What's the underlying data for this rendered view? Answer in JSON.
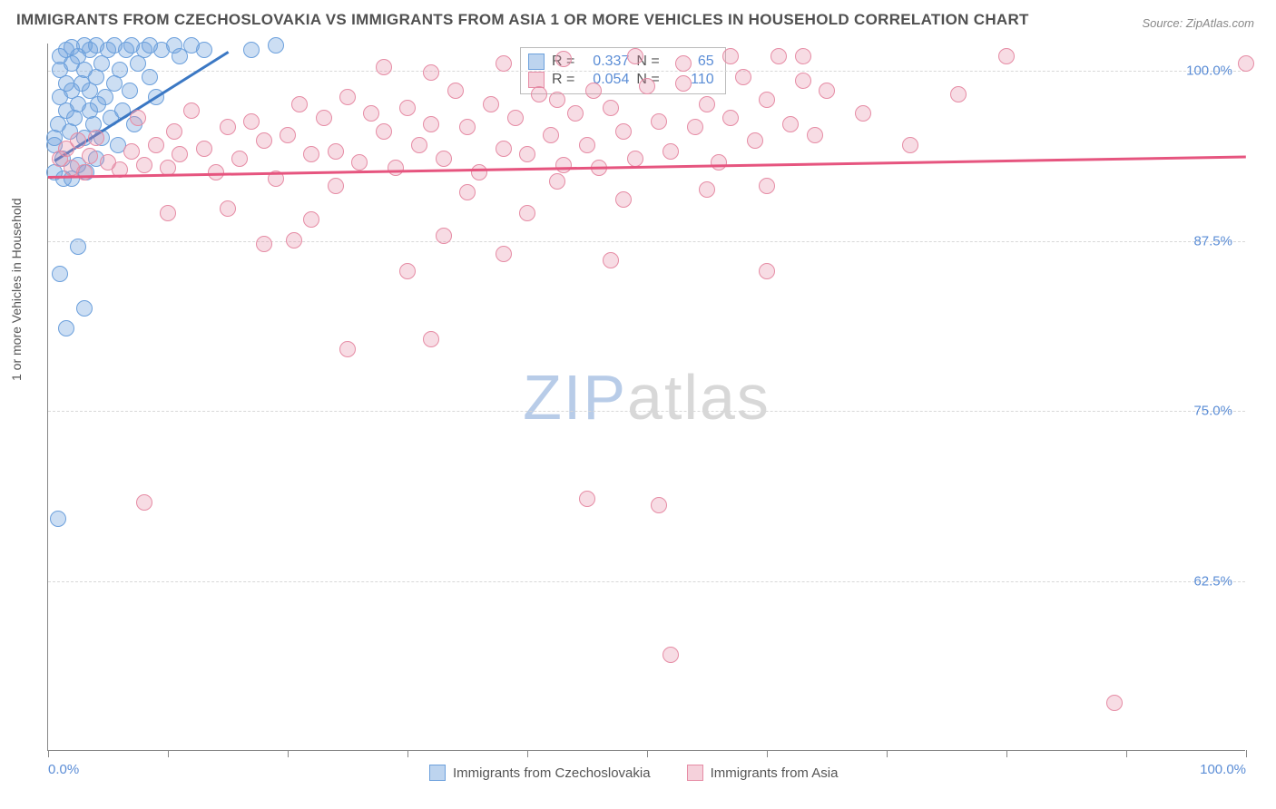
{
  "title": "IMMIGRANTS FROM CZECHOSLOVAKIA VS IMMIGRANTS FROM ASIA 1 OR MORE VEHICLES IN HOUSEHOLD CORRELATION CHART",
  "source": "Source: ZipAtlas.com",
  "y_axis_title": "1 or more Vehicles in Household",
  "watermark_a": "ZIP",
  "watermark_b": "atlas",
  "chart": {
    "type": "scatter",
    "background_color": "#ffffff",
    "grid_color": "#d8d8d8",
    "axis_color": "#888888",
    "xlim": [
      0,
      100
    ],
    "ylim": [
      50,
      102
    ],
    "y_ticks": [
      {
        "v": 62.5,
        "label": "62.5%"
      },
      {
        "v": 75.0,
        "label": "75.0%"
      },
      {
        "v": 87.5,
        "label": "87.5%"
      },
      {
        "v": 100.0,
        "label": "100.0%"
      }
    ],
    "x_ticks": [
      0,
      10,
      20,
      30,
      40,
      50,
      60,
      70,
      80,
      90,
      100
    ],
    "x_tick_labels": [
      {
        "v": 0,
        "label": "0.0%",
        "align": "left"
      },
      {
        "v": 100,
        "label": "100.0%",
        "align": "right"
      }
    ],
    "series": [
      {
        "name": "Immigrants from Czechoslovakia",
        "color_fill": "rgba(108,160,220,0.35)",
        "color_stroke": "#6ca0dc",
        "css": "pt-blue",
        "R": "0.337",
        "N": "65",
        "trend": {
          "x1": 0.5,
          "y1": 93.5,
          "x2": 15,
          "y2": 101.5,
          "color": "#3b78c4"
        },
        "points": [
          [
            0.5,
            92.5
          ],
          [
            0.5,
            94.5
          ],
          [
            0.5,
            95
          ],
          [
            0.8,
            96
          ],
          [
            1,
            98
          ],
          [
            1,
            100
          ],
          [
            1,
            101
          ],
          [
            1.2,
            93.5
          ],
          [
            1.3,
            92
          ],
          [
            1.5,
            97
          ],
          [
            1.5,
            99
          ],
          [
            1.5,
            101.5
          ],
          [
            1.8,
            95.5
          ],
          [
            2,
            92
          ],
          [
            2,
            98.5
          ],
          [
            2,
            100.5
          ],
          [
            2,
            101.7
          ],
          [
            2.2,
            96.5
          ],
          [
            2.5,
            93
          ],
          [
            2.5,
            97.5
          ],
          [
            2.5,
            101
          ],
          [
            2.8,
            99
          ],
          [
            3,
            95
          ],
          [
            3,
            100
          ],
          [
            3,
            101.8
          ],
          [
            3.2,
            92.5
          ],
          [
            3.5,
            97
          ],
          [
            3.5,
            98.5
          ],
          [
            3.5,
            101.5
          ],
          [
            3.8,
            96
          ],
          [
            4,
            93.5
          ],
          [
            4,
            99.5
          ],
          [
            4,
            101.8
          ],
          [
            4.2,
            97.5
          ],
          [
            4.5,
            95
          ],
          [
            4.5,
            100.5
          ],
          [
            4.8,
            98
          ],
          [
            5,
            101.5
          ],
          [
            5.2,
            96.5
          ],
          [
            5.5,
            99
          ],
          [
            5.5,
            101.8
          ],
          [
            5.8,
            94.5
          ],
          [
            6,
            100
          ],
          [
            6.2,
            97
          ],
          [
            6.5,
            101.5
          ],
          [
            6.8,
            98.5
          ],
          [
            7,
            101.8
          ],
          [
            7.2,
            96
          ],
          [
            7.5,
            100.5
          ],
          [
            8,
            101.5
          ],
          [
            8.5,
            99.5
          ],
          [
            8.5,
            101.8
          ],
          [
            9,
            98
          ],
          [
            9.5,
            101.5
          ],
          [
            10.5,
            101.8
          ],
          [
            11,
            101
          ],
          [
            12,
            101.8
          ],
          [
            13,
            101.5
          ],
          [
            0.8,
            67
          ],
          [
            2.5,
            87
          ],
          [
            1,
            85
          ],
          [
            3,
            82.5
          ],
          [
            1.5,
            81
          ],
          [
            17,
            101.5
          ],
          [
            19,
            101.8
          ]
        ]
      },
      {
        "name": "Immigrants from Asia",
        "color_fill": "rgba(230,140,165,0.30)",
        "color_stroke": "#e68ca5",
        "css": "pt-pink",
        "R": "0.054",
        "N": "110",
        "trend": {
          "x1": 0,
          "y1": 92.3,
          "x2": 100,
          "y2": 93.8,
          "color": "#e6557f"
        },
        "points": [
          [
            1,
            93.5
          ],
          [
            1.5,
            94.2
          ],
          [
            2,
            92.8
          ],
          [
            2.5,
            94.8
          ],
          [
            3,
            92.5
          ],
          [
            3.5,
            93.7
          ],
          [
            4,
            95
          ],
          [
            5,
            93.2
          ],
          [
            6,
            92.7
          ],
          [
            7,
            94
          ],
          [
            7.5,
            96.5
          ],
          [
            8,
            93
          ],
          [
            9,
            94.5
          ],
          [
            10,
            92.8
          ],
          [
            10.5,
            95.5
          ],
          [
            11,
            93.8
          ],
          [
            12,
            97
          ],
          [
            13,
            94.2
          ],
          [
            14,
            92.5
          ],
          [
            15,
            95.8
          ],
          [
            16,
            93.5
          ],
          [
            17,
            96.2
          ],
          [
            18,
            94.8
          ],
          [
            19,
            92
          ],
          [
            20,
            95.2
          ],
          [
            21,
            97.5
          ],
          [
            22,
            93.8
          ],
          [
            20.5,
            87.5
          ],
          [
            23,
            96.5
          ],
          [
            24,
            94
          ],
          [
            25,
            98
          ],
          [
            26,
            93.2
          ],
          [
            27,
            96.8
          ],
          [
            28,
            95.5
          ],
          [
            29,
            92.8
          ],
          [
            30,
            97.2
          ],
          [
            31,
            94.5
          ],
          [
            32,
            96
          ],
          [
            33,
            93.5
          ],
          [
            34,
            98.5
          ],
          [
            35,
            95.8
          ],
          [
            36,
            92.5
          ],
          [
            37,
            97.5
          ],
          [
            38,
            94.2
          ],
          [
            39,
            96.5
          ],
          [
            40,
            93.8
          ],
          [
            41,
            98.2
          ],
          [
            42,
            95.2
          ],
          [
            42.5,
            97.8
          ],
          [
            43,
            93
          ],
          [
            44,
            96.8
          ],
          [
            45,
            94.5
          ],
          [
            45.5,
            98.5
          ],
          [
            46,
            92.8
          ],
          [
            47,
            97.2
          ],
          [
            48,
            95.5
          ],
          [
            49,
            93.5
          ],
          [
            50,
            98.8
          ],
          [
            51,
            96.2
          ],
          [
            52,
            94
          ],
          [
            53,
            99
          ],
          [
            54,
            95.8
          ],
          [
            55,
            97.5
          ],
          [
            56,
            93.2
          ],
          [
            57,
            96.5
          ],
          [
            58,
            99.5
          ],
          [
            59,
            94.8
          ],
          [
            60,
            97.8
          ],
          [
            61,
            101
          ],
          [
            62,
            96
          ],
          [
            63,
            99.2
          ],
          [
            64,
            95.2
          ],
          [
            65,
            98.5
          ],
          [
            68,
            96.8
          ],
          [
            72,
            94.5
          ],
          [
            76,
            98.2
          ],
          [
            80,
            101
          ],
          [
            25,
            79.5
          ],
          [
            32,
            80.2
          ],
          [
            38,
            86.5
          ],
          [
            33,
            87.8
          ],
          [
            30,
            85.2
          ],
          [
            45,
            68.5
          ],
          [
            51,
            68
          ],
          [
            22,
            89
          ],
          [
            10,
            89.5
          ],
          [
            15,
            89.8
          ],
          [
            18,
            87.2
          ],
          [
            24,
            91.5
          ],
          [
            35,
            91
          ],
          [
            40,
            89.5
          ],
          [
            42.5,
            91.8
          ],
          [
            48,
            90.5
          ],
          [
            55,
            91.2
          ],
          [
            47,
            86
          ],
          [
            60,
            85.2
          ],
          [
            52,
            57
          ],
          [
            89,
            53.5
          ],
          [
            63,
            101
          ],
          [
            57,
            101
          ],
          [
            53,
            100.5
          ],
          [
            49,
            101
          ],
          [
            43,
            100.8
          ],
          [
            38,
            100.5
          ],
          [
            32,
            99.8
          ],
          [
            28,
            100.2
          ],
          [
            8,
            68.2
          ],
          [
            60,
            91.5
          ],
          [
            100,
            100.5
          ]
        ]
      }
    ]
  },
  "bottom_legend": [
    {
      "swatch": "sw-blue",
      "label": "Immigrants from Czechoslovakia"
    },
    {
      "swatch": "sw-pink",
      "label": "Immigrants from Asia"
    }
  ]
}
